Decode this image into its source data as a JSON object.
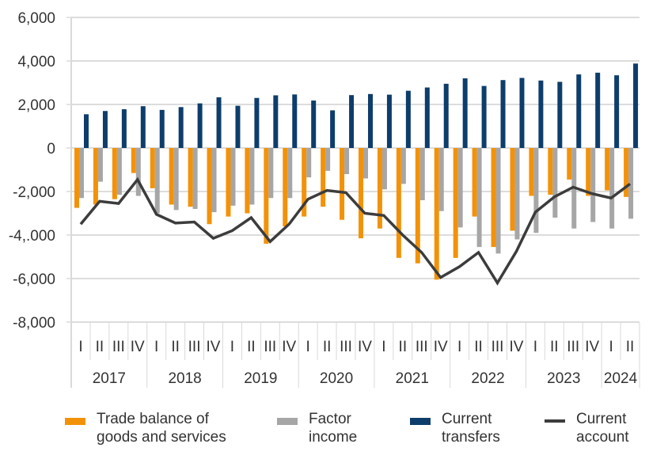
{
  "chart_data": {
    "type": "bar",
    "title": "",
    "xlabel": "",
    "ylabel": "",
    "ylim": [
      -8000,
      6000
    ],
    "yticks": [
      6000,
      4000,
      2000,
      0,
      -2000,
      -4000,
      -6000,
      -8000
    ],
    "ytick_labels": [
      "6,000",
      "4,000",
      "2,000",
      "0",
      "-2,000",
      "-4,.000",
      "-6,000",
      "-8,000"
    ],
    "grid": true,
    "legend_position": "bottom",
    "years": [
      {
        "label": "2017",
        "quarters": 4
      },
      {
        "label": "2018",
        "quarters": 4
      },
      {
        "label": "2019",
        "quarters": 4
      },
      {
        "label": "2020",
        "quarters": 4
      },
      {
        "label": "2021",
        "quarters": 4
      },
      {
        "label": "2022",
        "quarters": 4
      },
      {
        "label": "2023",
        "quarters": 4
      },
      {
        "label": "2024",
        "quarters": 2
      }
    ],
    "categories": [
      "I",
      "II",
      "III",
      "IV",
      "I",
      "II",
      "III",
      "IV",
      "I",
      "II",
      "III",
      "IV",
      "I",
      "II",
      "III",
      "IV",
      "I",
      "II",
      "III",
      "IV",
      "I",
      "II",
      "III",
      "IV",
      "I",
      "II",
      "III",
      "IV",
      "I",
      "II"
    ],
    "series": [
      {
        "name": "Trade balance of goods and services",
        "type": "bar",
        "color": "#f39208",
        "values": [
          -2750,
          -2600,
          -2350,
          -1150,
          -1850,
          -2600,
          -2700,
          -3500,
          -3150,
          -3000,
          -4400,
          -3600,
          -3150,
          -2700,
          -3300,
          -4150,
          -3700,
          -5050,
          -5300,
          -6050,
          -5050,
          -3150,
          -4550,
          -3800,
          -2200,
          -2150,
          -1450,
          -2200,
          -1950,
          -2250
        ]
      },
      {
        "name": "Factor income",
        "type": "bar",
        "color": "#a6a6a6",
        "values": [
          -2300,
          -1550,
          -2150,
          -2200,
          -3000,
          -2850,
          -2800,
          -2950,
          -2650,
          -2600,
          -2300,
          -2300,
          -1350,
          -1050,
          -1200,
          -1400,
          -1900,
          -1650,
          -2400,
          -2900,
          -3650,
          -4550,
          -4850,
          -4200,
          -3900,
          -3200,
          -3700,
          -3400,
          -3700,
          -3250
        ]
      },
      {
        "name": "Current transfers",
        "type": "bar",
        "color": "#0d3d6b",
        "values": [
          1550,
          1700,
          1780,
          1920,
          1750,
          1880,
          2050,
          2330,
          1940,
          2300,
          2420,
          2460,
          2180,
          1730,
          2430,
          2480,
          2450,
          2630,
          2780,
          2950,
          3200,
          2850,
          3120,
          3220,
          3100,
          3040,
          3380,
          3460,
          3340,
          3880
        ]
      },
      {
        "name": "Current account",
        "type": "line",
        "color": "#3c3c3c",
        "values": [
          -3500,
          -2450,
          -2550,
          -1450,
          -3050,
          -3450,
          -3400,
          -4150,
          -3800,
          -3200,
          -4300,
          -3500,
          -2350,
          -1950,
          -2050,
          -3000,
          -3100,
          -4000,
          -4800,
          -5950,
          -5450,
          -4800,
          -6200,
          -4750,
          -2950,
          -2250,
          -1800,
          -2100,
          -2300,
          -1650
        ]
      }
    ]
  },
  "legend": [
    {
      "line1": "Trade balance of",
      "line2": "goods and services"
    },
    {
      "line1": "Factor",
      "line2": "income"
    },
    {
      "line1": "Current",
      "line2": "transfers"
    },
    {
      "line1": "Current",
      "line2": "account"
    }
  ]
}
